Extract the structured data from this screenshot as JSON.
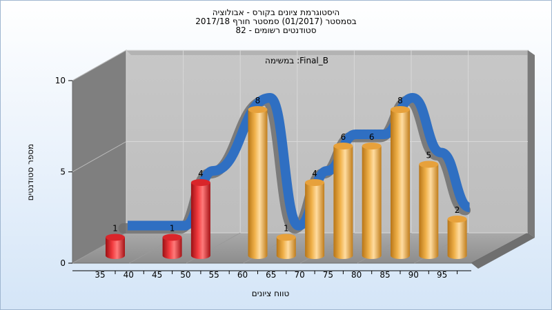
{
  "chart_data": {
    "type": "bar",
    "title_lines": [
      "היסטוגרמת ציונים בקורס - אבולוציה",
      "בסמסטר  (01/2017)  סמסטר חורף 2017/18",
      "סטודנטים רשומים - 82"
    ],
    "subtitle": "במשימה :Final_B",
    "xlabel": "טווח ציונים",
    "ylabel": "מספר סטודנטים",
    "x_ticks": [
      "35",
      "40",
      "45",
      "50",
      "55",
      "60",
      "65",
      "70",
      "75",
      "80",
      "85",
      "90",
      "95"
    ],
    "y_ticks": [
      "0",
      "5",
      "10"
    ],
    "ylim": [
      0,
      10
    ],
    "grid": true,
    "bars": [
      {
        "x": 35,
        "value": 1,
        "color": "red"
      },
      {
        "x": 45,
        "value": 1,
        "color": "red"
      },
      {
        "x": 50,
        "value": 4,
        "color": "red"
      },
      {
        "x": 60,
        "value": 8,
        "color": "orange"
      },
      {
        "x": 65,
        "value": 1,
        "color": "orange"
      },
      {
        "x": 70,
        "value": 4,
        "color": "orange"
      },
      {
        "x": 75,
        "value": 6,
        "color": "orange"
      },
      {
        "x": 80,
        "value": 6,
        "color": "orange"
      },
      {
        "x": 85,
        "value": 8,
        "color": "orange"
      },
      {
        "x": 90,
        "value": 5,
        "color": "orange"
      },
      {
        "x": 95,
        "value": 2,
        "color": "orange"
      }
    ],
    "colors": {
      "fail_bar": "#e8262b",
      "pass_bar": "#f0a93c",
      "trend_line": "#2f6fc2",
      "trend_shadow": "#6e6e6e"
    }
  }
}
